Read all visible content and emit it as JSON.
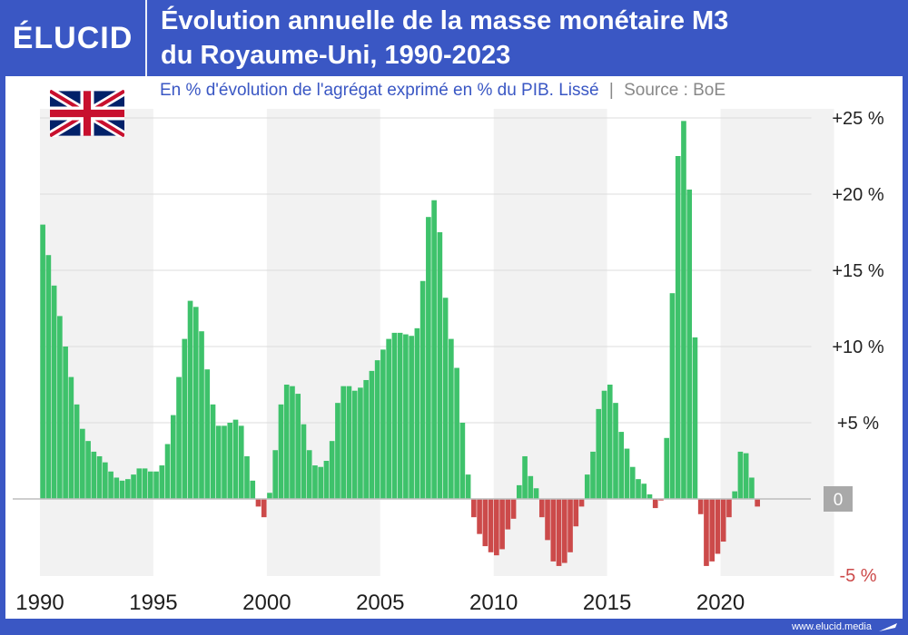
{
  "header": {
    "logo": "ÉLUCID",
    "title_line1": "Évolution annuelle de la masse monétaire M3",
    "title_line2": "du Royaume-Uni, 1990-2023"
  },
  "subtitle": {
    "text": "En % d'évolution de l'agrégat exprimé en % du PIB. Lissé",
    "separator": "|",
    "source": "Source : BoE"
  },
  "footer": {
    "site": "www.elucid.media"
  },
  "colors": {
    "positive": "#3ec26b",
    "negative": "#cc4a4a",
    "brand": "#3a57c4",
    "band": "#f2f2f2",
    "zero_box": "#a9a9a9"
  },
  "icons": [
    "uk-flag-icon",
    "elucid-arrow-icon"
  ],
  "chart_data": {
    "type": "bar",
    "title": "Évolution annuelle de la masse monétaire M3 du Royaume-Uni, 1990-2023",
    "x_ticks": [
      1990,
      1995,
      2000,
      2005,
      2010,
      2015,
      2020
    ],
    "x_range": [
      1990,
      2024
    ],
    "y_ticks": [
      "+25 %",
      "+20 %",
      "+15 %",
      "+10 %",
      "+5 %",
      "0",
      "-5 %"
    ],
    "ylim": [
      -5,
      25
    ],
    "grid": true,
    "quarter_start": 1990.0,
    "quarter_step": 0.25,
    "values": [
      18,
      16,
      14,
      12,
      10,
      8,
      6.2,
      4.6,
      3.8,
      3.1,
      2.8,
      2.4,
      1.8,
      1.4,
      1.2,
      1.3,
      1.6,
      2.0,
      2.0,
      1.8,
      1.8,
      2.2,
      3.6,
      5.5,
      8,
      10.5,
      13,
      12.6,
      11,
      8.5,
      6.2,
      4.8,
      4.8,
      5.0,
      5.2,
      4.8,
      2.8,
      1.2,
      -0.5,
      -1.2,
      0.4,
      3.2,
      6.2,
      7.5,
      7.4,
      6.9,
      4.9,
      3.2,
      2.2,
      2.1,
      2.5,
      3.8,
      6.3,
      7.4,
      7.4,
      7.1,
      7.3,
      7.8,
      8.4,
      9.1,
      9.8,
      10.5,
      10.9,
      10.9,
      10.8,
      10.7,
      11.2,
      14.3,
      18.5,
      19.6,
      17.5,
      13.2,
      10.5,
      8.6,
      5.0,
      1.6,
      -1.2,
      -2.3,
      -3.1,
      -3.5,
      -3.7,
      -3.3,
      -2.0,
      -1.3,
      0.9,
      2.8,
      1.5,
      0.7,
      -1.2,
      -2.7,
      -4.1,
      -4.4,
      -4.2,
      -3.5,
      -1.8,
      -0.5,
      1.6,
      3.1,
      5.9,
      7.1,
      7.5,
      6.3,
      4.4,
      3.3,
      2.1,
      1.3,
      1.0,
      0.3,
      -0.6,
      -0.1,
      4.0,
      13.5,
      22.5,
      24.8,
      20.3,
      10.6,
      -1.0,
      -4.4,
      -4.1,
      -3.6,
      -2.8,
      -1.2,
      0.5,
      3.1,
      3.0,
      1.4,
      -0.5
    ]
  }
}
